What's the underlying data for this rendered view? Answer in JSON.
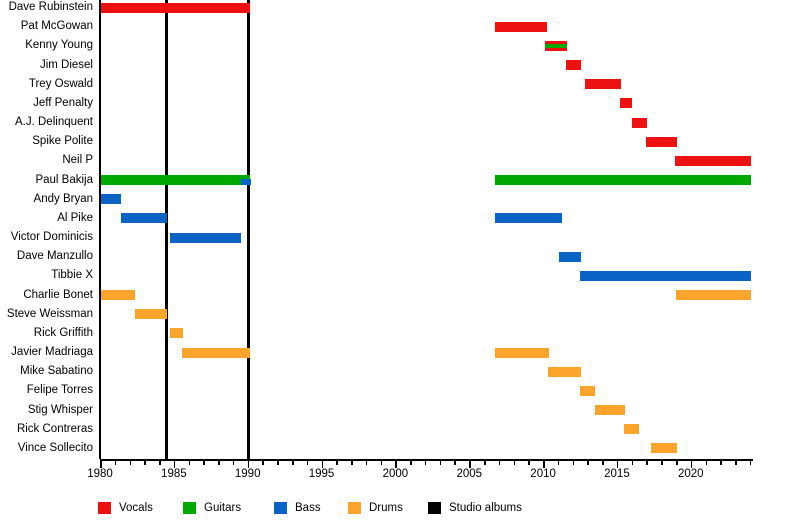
{
  "chart_data": {
    "type": "timeline",
    "description": "Band membership timeline (gantt-style): members vs years, colored by instrument, with vertical lines marking studio albums",
    "axis": {
      "start": 1980,
      "end": 2024.2,
      "minor_tick_every": 1,
      "major_tick_every": 5,
      "year_labels": [
        1980,
        1985,
        1990,
        1995,
        2000,
        2005,
        2010,
        2015,
        2020
      ]
    },
    "colors": {
      "vocals": "#ee1111",
      "guitars": "#00a800",
      "bass": "#0b63c6",
      "drums": "#faa42b",
      "albums": "#000000"
    },
    "studio_albums": [
      1984.5,
      1990.05
    ],
    "legend": [
      {
        "label": "Vocals",
        "role": "vocals"
      },
      {
        "label": "Guitars",
        "role": "guitars"
      },
      {
        "label": "Bass",
        "role": "bass"
      },
      {
        "label": "Drums",
        "role": "drums"
      },
      {
        "label": "Studio albums",
        "role": "albums"
      }
    ],
    "rows": [
      {
        "name": "Dave Rubinstein",
        "bars": [
          {
            "role": "vocals",
            "start": 1980.05,
            "end": 1990.15
          }
        ]
      },
      {
        "name": "Pat McGowan",
        "bars": [
          {
            "role": "vocals",
            "start": 2006.75,
            "end": 2010.25
          }
        ]
      },
      {
        "name": "Kenny Young",
        "bars": [
          {
            "role": "vocals_guitars",
            "start": 2010.15,
            "end": 2011.6
          }
        ]
      },
      {
        "name": "Jim Diesel",
        "bars": [
          {
            "role": "vocals",
            "start": 2011.55,
            "end": 2012.55
          }
        ]
      },
      {
        "name": "Trey Oswald",
        "bars": [
          {
            "role": "vocals",
            "start": 2012.85,
            "end": 2015.25
          }
        ]
      },
      {
        "name": "Jeff Penalty",
        "bars": [
          {
            "role": "vocals",
            "start": 2015.2,
            "end": 2016.0
          }
        ]
      },
      {
        "name": "A.J. Delinquent",
        "bars": [
          {
            "role": "vocals",
            "start": 2016.0,
            "end": 2017.05
          }
        ]
      },
      {
        "name": "Spike Polite",
        "bars": [
          {
            "role": "vocals",
            "start": 2016.95,
            "end": 2019.05
          }
        ]
      },
      {
        "name": "Neil P",
        "bars": [
          {
            "role": "vocals",
            "start": 2018.95,
            "end": 2024.1
          }
        ]
      },
      {
        "name": "Paul Bakija",
        "bars": [
          {
            "role": "guitars",
            "start": 1980.05,
            "end": 1990.15
          },
          {
            "role": "guitars",
            "start": 2006.75,
            "end": 2024.1
          },
          {
            "role": "bass_overlay",
            "start": 1989.55,
            "end": 1990.2
          }
        ]
      },
      {
        "name": "Andy Bryan",
        "bars": [
          {
            "role": "bass",
            "start": 1980.05,
            "end": 1981.4
          }
        ]
      },
      {
        "name": "Al Pike",
        "bars": [
          {
            "role": "bass",
            "start": 1981.4,
            "end": 1984.55
          },
          {
            "role": "bass",
            "start": 2006.75,
            "end": 2011.3
          }
        ]
      },
      {
        "name": "Victor Dominicis",
        "bars": [
          {
            "role": "bass",
            "start": 1984.75,
            "end": 1989.55
          }
        ]
      },
      {
        "name": "Dave Manzullo",
        "bars": [
          {
            "role": "bass",
            "start": 2011.1,
            "end": 2012.55
          }
        ]
      },
      {
        "name": "Tibbie X",
        "bars": [
          {
            "role": "bass",
            "start": 2012.5,
            "end": 2024.1
          }
        ]
      },
      {
        "name": "Charlie Bonet",
        "bars": [
          {
            "role": "drums",
            "start": 1980.05,
            "end": 1982.35
          },
          {
            "role": "drums",
            "start": 2019.0,
            "end": 2024.1
          }
        ]
      },
      {
        "name": "Steve Weissman",
        "bars": [
          {
            "role": "drums",
            "start": 1982.35,
            "end": 1984.55
          }
        ]
      },
      {
        "name": "Rick Griffith",
        "bars": [
          {
            "role": "drums",
            "start": 1984.75,
            "end": 1985.6
          }
        ]
      },
      {
        "name": "Javier Madriaga",
        "bars": [
          {
            "role": "drums",
            "start": 1985.55,
            "end": 1990.15
          },
          {
            "role": "drums",
            "start": 2006.75,
            "end": 2010.4
          }
        ]
      },
      {
        "name": "Mike Sabatino",
        "bars": [
          {
            "role": "drums",
            "start": 2010.35,
            "end": 2012.55
          }
        ]
      },
      {
        "name": "Felipe Torres",
        "bars": [
          {
            "role": "drums",
            "start": 2012.5,
            "end": 2013.5
          }
        ]
      },
      {
        "name": "Stig Whisper",
        "bars": [
          {
            "role": "drums",
            "start": 2013.5,
            "end": 2015.55
          }
        ]
      },
      {
        "name": "Rick Contreras",
        "bars": [
          {
            "role": "drums",
            "start": 2015.45,
            "end": 2016.5
          }
        ]
      },
      {
        "name": "Vince Sollecito",
        "bars": [
          {
            "role": "drums",
            "start": 2017.3,
            "end": 2019.05
          }
        ]
      }
    ]
  }
}
